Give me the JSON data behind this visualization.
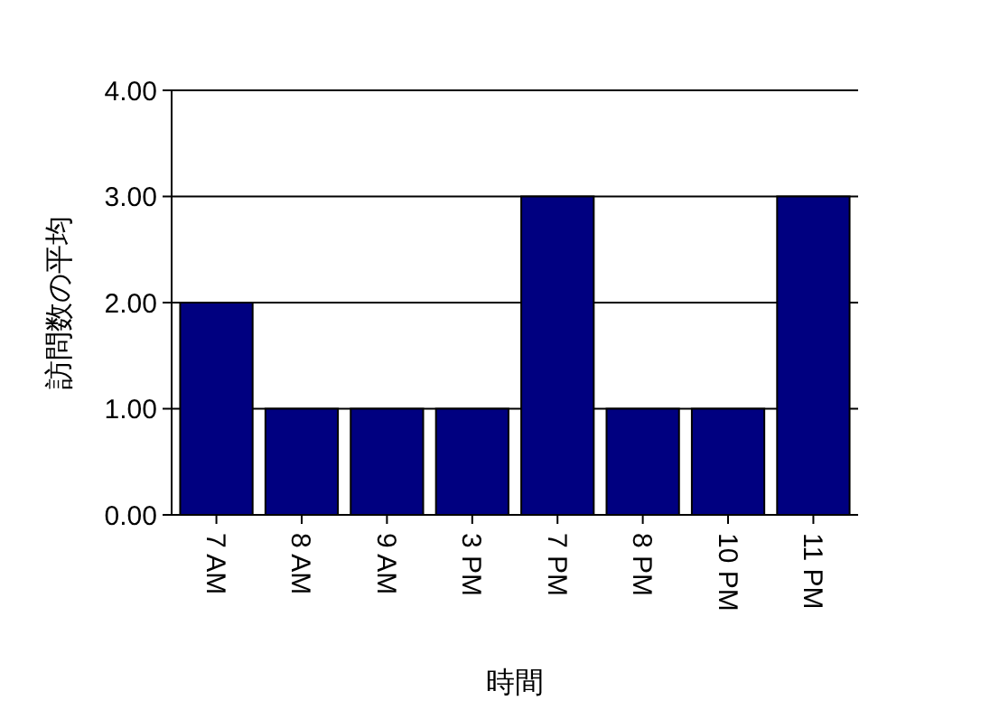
{
  "chart_data": {
    "type": "bar",
    "xlabel": "時間",
    "ylabel": "訪問数の平均",
    "categories": [
      "7 AM",
      "8 AM",
      "9 AM",
      "3 PM",
      "7 PM",
      "8 PM",
      "10 PM",
      "11 PM"
    ],
    "values": [
      2,
      1,
      1,
      1,
      3,
      1,
      1,
      3
    ],
    "color": "#000080",
    "ylim": [
      0,
      4
    ],
    "yticks": [
      {
        "value": 0,
        "label": "0.00"
      },
      {
        "value": 1,
        "label": "1.00"
      },
      {
        "value": 2,
        "label": "2.00"
      },
      {
        "value": 3,
        "label": "3.00"
      },
      {
        "value": 4,
        "label": "4.00"
      }
    ],
    "grid": "y"
  }
}
